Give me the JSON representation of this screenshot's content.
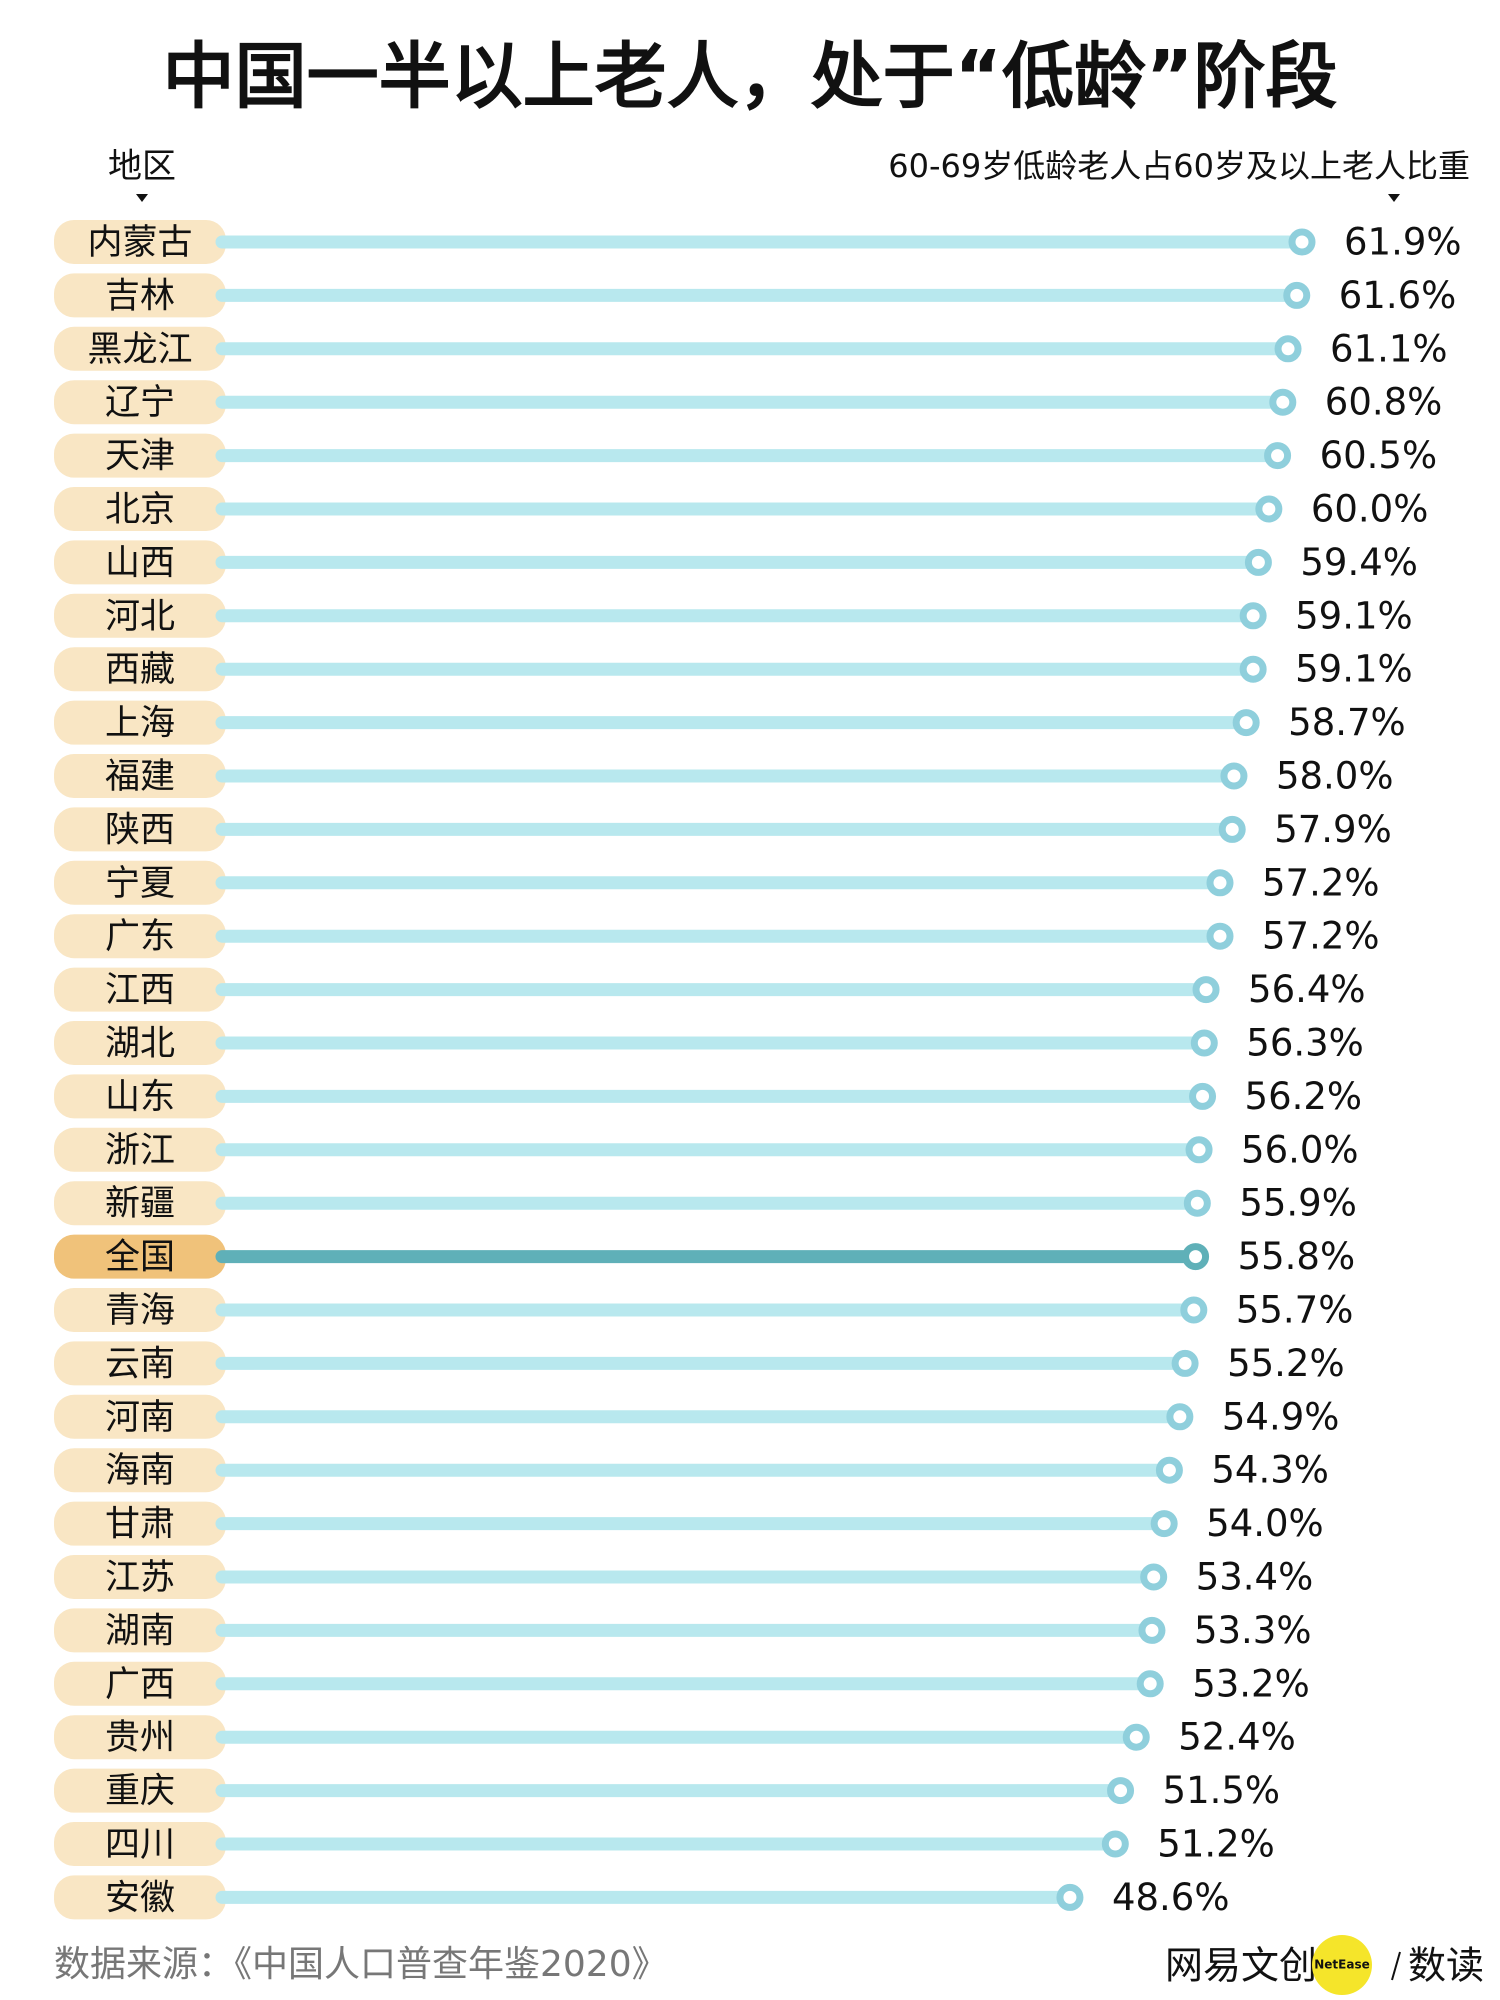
{
  "chart_data": {
    "type": "lollipop",
    "title": "中国一半以上老人，处于“低龄”阶段",
    "y_label": "地区",
    "x_label": "60-69岁低龄老人占60岁及以上老人比重",
    "categories": [
      "内蒙古",
      "吉林",
      "黑龙江",
      "辽宁",
      "天津",
      "北京",
      "山西",
      "河北",
      "西藏",
      "上海",
      "福建",
      "陕西",
      "宁夏",
      "广东",
      "江西",
      "湖北",
      "山东",
      "浙江",
      "新疆",
      "全国",
      "青海",
      "云南",
      "河南",
      "海南",
      "甘肃",
      "江苏",
      "湖南",
      "广西",
      "贵州",
      "重庆",
      "四川",
      "安徽"
    ],
    "values": [
      61.9,
      61.6,
      61.1,
      60.8,
      60.5,
      60.0,
      59.4,
      59.1,
      59.1,
      58.7,
      58.0,
      57.9,
      57.2,
      57.2,
      56.4,
      56.3,
      56.2,
      56.0,
      55.9,
      55.8,
      55.7,
      55.2,
      54.9,
      54.3,
      54.0,
      53.4,
      53.3,
      53.2,
      52.4,
      51.5,
      51.2,
      48.6
    ],
    "value_labels": [
      "61.9%",
      "61.6%",
      "61.1%",
      "60.8%",
      "60.5%",
      "60.0%",
      "59.4%",
      "59.1%",
      "59.1%",
      "58.7%",
      "58.0%",
      "57.9%",
      "57.2%",
      "57.2%",
      "56.4%",
      "56.3%",
      "56.2%",
      "56.0%",
      "55.9%",
      "55.8%",
      "55.7%",
      "55.2%",
      "54.9%",
      "54.3%",
      "54.0%",
      "53.4%",
      "53.3%",
      "53.2%",
      "52.4%",
      "51.5%",
      "51.2%",
      "48.6%"
    ],
    "color": "#b8e8ee",
    "marker_color": "#8fcfdc",
    "label_bg": "#f9e6c4",
    "highlight": "全国",
    "highlight_color": "#5fb0b8",
    "highlight_bg": "#f0c27a",
    "source": "数据来源：《中国人口普查年鉴2020》",
    "brand": "网易文创",
    "brand_badge": "NetEase",
    "brand_column": "数读"
  }
}
